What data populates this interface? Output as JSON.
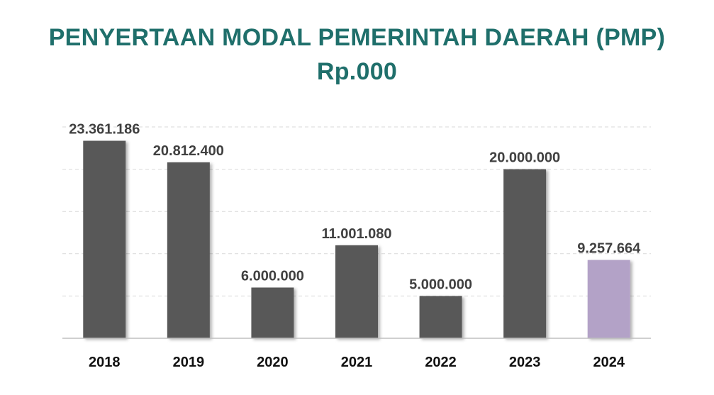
{
  "chart_data": {
    "type": "bar",
    "title": "PENYERTAAN MODAL PEMERINTAH DAERAH (PMP)",
    "subtitle": "Rp.000",
    "categories": [
      "2018",
      "2019",
      "2020",
      "2021",
      "2022",
      "2023",
      "2024"
    ],
    "values": [
      23361186,
      20812400,
      6000000,
      11001080,
      5000000,
      20000000,
      9257664
    ],
    "value_labels": [
      "23.361.186",
      "20.812.400",
      "6.000.000",
      "11.001.080",
      "5.000.000",
      "20.000.000",
      "9.257.664"
    ],
    "ylim": [
      0,
      25000000
    ],
    "grid": true,
    "legend": "none",
    "colors": {
      "title": "#1f6f6b",
      "bar": "#595959",
      "highlight_bar": "#b3a2c7",
      "grid": "#d9d9d9",
      "axis": "#bfbfbf"
    },
    "highlight_category": "2024"
  }
}
